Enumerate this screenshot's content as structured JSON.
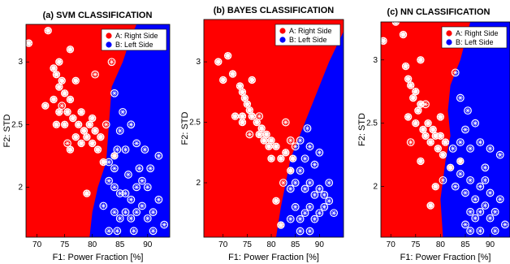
{
  "chart_data": [
    {
      "type": "scatter",
      "title": "(a) SVM CLASSIFICATION",
      "xlabel": "F1: Power Fraction [%]",
      "ylabel": "F2: STD",
      "xlim": [
        68,
        94
      ],
      "ylim": [
        1.6,
        3.3
      ],
      "xticks": [
        "70",
        "75",
        "80",
        "85",
        "90"
      ],
      "yticks": [
        "2",
        "2.5",
        "3"
      ],
      "legend": [
        "A: Right Side",
        "B: Left Side"
      ],
      "legend_position": "top-right",
      "boundary": [
        [
          79.5,
          1.6
        ],
        [
          80.0,
          1.8
        ],
        [
          81.0,
          2.0
        ],
        [
          82.5,
          2.2
        ],
        [
          83.0,
          2.5
        ],
        [
          83.5,
          2.8
        ],
        [
          85.5,
          3.0
        ],
        [
          87.0,
          3.2
        ],
        [
          88.0,
          3.3
        ]
      ],
      "series": [
        {
          "name": "A: Right Side",
          "points": [
            [
              68.5,
              3.15
            ],
            [
              72,
              3.25
            ],
            [
              73,
              2.95
            ],
            [
              73.5,
              2.9
            ],
            [
              74,
              2.8
            ],
            [
              74.5,
              2.85
            ],
            [
              73,
              2.7
            ],
            [
              75,
              2.75
            ],
            [
              75.5,
              2.6
            ],
            [
              76,
              2.7
            ],
            [
              74,
              2.6
            ],
            [
              73.5,
              2.5
            ],
            [
              75,
              2.5
            ],
            [
              76.5,
              2.55
            ],
            [
              77,
              2.4
            ],
            [
              77.5,
              2.5
            ],
            [
              78,
              2.6
            ],
            [
              78.5,
              2.45
            ],
            [
              79,
              2.4
            ],
            [
              79.5,
              2.5
            ],
            [
              80,
              2.35
            ],
            [
              80.5,
              2.45
            ],
            [
              81,
              2.3
            ],
            [
              81.5,
              2.4
            ],
            [
              76,
              2.3
            ],
            [
              74,
              3.0
            ],
            [
              77,
              2.85
            ],
            [
              79,
              1.95
            ],
            [
              82,
              2.2
            ],
            [
              84,
              2.25
            ],
            [
              80,
              2.55
            ],
            [
              78,
              2.35
            ],
            [
              76,
              3.1
            ],
            [
              71.5,
              2.65
            ]
          ]
        },
        {
          "name": "B: Left Side",
          "points": [
            [
              74.5,
              2.65
            ],
            [
              75.5,
              2.35
            ],
            [
              83,
              2.2
            ],
            [
              84.5,
              2.3
            ],
            [
              85,
              2.45
            ],
            [
              86,
              2.3
            ],
            [
              87,
              2.5
            ],
            [
              84,
              2.15
            ],
            [
              83,
              2.05
            ],
            [
              84,
              2.0
            ],
            [
              85,
              1.95
            ],
            [
              86,
              1.95
            ],
            [
              87,
              1.9
            ],
            [
              88,
              2.0
            ],
            [
              89,
              2.05
            ],
            [
              90,
              2.0
            ],
            [
              86,
              1.8
            ],
            [
              87,
              1.75
            ],
            [
              88,
              1.8
            ],
            [
              89,
              1.85
            ],
            [
              90,
              1.75
            ],
            [
              91,
              1.8
            ],
            [
              92,
              1.9
            ],
            [
              85,
              1.75
            ],
            [
              84,
              1.8
            ],
            [
              82,
              1.85
            ],
            [
              83,
              1.65
            ],
            [
              84.5,
              1.65
            ],
            [
              87.5,
              1.65
            ],
            [
              91,
              1.65
            ],
            [
              93,
              1.7
            ],
            [
              92,
              2.25
            ],
            [
              88,
              2.35
            ],
            [
              89.5,
              2.3
            ],
            [
              86.5,
              2.1
            ],
            [
              88.5,
              2.15
            ],
            [
              90.5,
              2.15
            ],
            [
              85.5,
              2.6
            ],
            [
              84,
              2.75
            ],
            [
              83.5,
              3.0
            ],
            [
              80.5,
              2.9
            ],
            [
              82.5,
              2.5
            ]
          ]
        }
      ]
    },
    {
      "type": "scatter",
      "title": "(b) BAYES CLASSIFICATION",
      "xlabel": "F1: Power Fraction [%]",
      "ylabel": "F2: STD",
      "xlim": [
        66,
        95
      ],
      "ylim": [
        1.55,
        3.35
      ],
      "xticks": [
        "70",
        "75",
        "80",
        "85",
        "90"
      ],
      "yticks": [
        "2",
        "2.5",
        "3"
      ],
      "legend": [
        "A: Right Side",
        "B: Left Side"
      ],
      "legend_position": "top-right",
      "boundary": [
        [
          81,
          1.55
        ],
        [
          82,
          1.8
        ],
        [
          83,
          2.0
        ],
        [
          84,
          2.2
        ],
        [
          86,
          2.4
        ],
        [
          88,
          2.6
        ],
        [
          90,
          2.8
        ],
        [
          92,
          3.0
        ],
        [
          95,
          3.25
        ]
      ],
      "series": [
        {
          "name": "A: Right Side",
          "points": [
            [
              69,
              3.0
            ],
            [
              70,
              2.85
            ],
            [
              71,
              3.05
            ],
            [
              72,
              2.9
            ],
            [
              73.5,
              2.8
            ],
            [
              74,
              2.75
            ],
            [
              74.5,
              2.7
            ],
            [
              75,
              2.65
            ],
            [
              75.5,
              2.6
            ],
            [
              76,
              2.55
            ],
            [
              74,
              2.5
            ],
            [
              74,
              2.55
            ],
            [
              77,
              2.5
            ],
            [
              77.5,
              2.4
            ],
            [
              78,
              2.45
            ],
            [
              78.5,
              2.35
            ],
            [
              79,
              2.4
            ],
            [
              79.5,
              2.3
            ],
            [
              80,
              2.35
            ],
            [
              81,
              2.3
            ],
            [
              82,
              2.2
            ],
            [
              83,
              2.25
            ],
            [
              84,
              2.1
            ],
            [
              84.5,
              2.2
            ],
            [
              81,
              1.85
            ],
            [
              82,
              1.65
            ],
            [
              80,
              2.2
            ],
            [
              76,
              2.85
            ],
            [
              72.5,
              2.55
            ]
          ]
        },
        {
          "name": "B: Left Side",
          "points": [
            [
              75.5,
              2.4
            ],
            [
              77.5,
              2.55
            ],
            [
              83,
              2.5
            ],
            [
              84,
              2.35
            ],
            [
              85,
              2.3
            ],
            [
              86,
              2.35
            ],
            [
              87,
              2.2
            ],
            [
              88,
              2.3
            ],
            [
              86,
              2.1
            ],
            [
              85,
              2.0
            ],
            [
              84,
              1.95
            ],
            [
              87,
              1.95
            ],
            [
              88,
              2.0
            ],
            [
              89,
              1.9
            ],
            [
              90,
              1.95
            ],
            [
              91,
              1.9
            ],
            [
              85,
              1.8
            ],
            [
              86,
              1.7
            ],
            [
              87,
              1.75
            ],
            [
              88,
              1.8
            ],
            [
              89,
              1.7
            ],
            [
              90,
              1.75
            ],
            [
              91,
              1.8
            ],
            [
              92,
              1.85
            ],
            [
              84,
              1.7
            ],
            [
              86,
              1.6
            ],
            [
              88,
              1.6
            ],
            [
              92,
              2.0
            ],
            [
              90,
              2.25
            ],
            [
              89,
              2.15
            ],
            [
              82.5,
              2.0
            ],
            [
              93,
              1.75
            ],
            [
              87.5,
              2.45
            ]
          ]
        }
      ]
    },
    {
      "type": "scatter",
      "title": "(c) NN CLASSIFICATION",
      "xlabel": "F1: Power Fraction [%]",
      "ylabel": "F2: STD",
      "xlim": [
        68,
        94
      ],
      "ylim": [
        1.6,
        3.3
      ],
      "xticks": [
        "70",
        "75",
        "80",
        "85",
        "90"
      ],
      "yticks": [
        "2",
        "2.5",
        "3"
      ],
      "legend": [
        "A: Right Side",
        "B: Left Side"
      ],
      "legend_position": "top-right",
      "boundary": [
        [
          80.5,
          1.6
        ],
        [
          80.0,
          1.9
        ],
        [
          81.0,
          2.2
        ],
        [
          82.0,
          2.4
        ],
        [
          81.5,
          2.6
        ],
        [
          82.0,
          2.8
        ],
        [
          84.0,
          3.0
        ],
        [
          85.0,
          3.15
        ],
        [
          86.0,
          3.3
        ]
      ],
      "series": [
        {
          "name": "A: Right Side",
          "points": [
            [
              68.5,
              3.15
            ],
            [
              71,
              3.3
            ],
            [
              72.5,
              3.2
            ],
            [
              73,
              2.95
            ],
            [
              73.5,
              2.85
            ],
            [
              74,
              2.8
            ],
            [
              74.5,
              2.7
            ],
            [
              75,
              2.75
            ],
            [
              75.5,
              2.6
            ],
            [
              76,
              2.65
            ],
            [
              73.5,
              2.55
            ],
            [
              75,
              2.5
            ],
            [
              76.5,
              2.45
            ],
            [
              77,
              2.4
            ],
            [
              77.5,
              2.5
            ],
            [
              78,
              2.35
            ],
            [
              78.5,
              2.45
            ],
            [
              79,
              2.4
            ],
            [
              79.5,
              2.3
            ],
            [
              80,
              2.4
            ],
            [
              80.5,
              2.25
            ],
            [
              81,
              2.35
            ],
            [
              76,
              2.2
            ],
            [
              79,
              2.0
            ],
            [
              78,
              1.85
            ],
            [
              82,
              2.15
            ],
            [
              84,
              2.2
            ],
            [
              80,
              2.55
            ],
            [
              76,
              3.0
            ]
          ]
        },
        {
          "name": "B: Left Side",
          "points": [
            [
              77,
              2.65
            ],
            [
              74,
              2.35
            ],
            [
              80.5,
              2.05
            ],
            [
              82.5,
              2.3
            ],
            [
              84,
              2.35
            ],
            [
              85,
              2.45
            ],
            [
              86,
              2.3
            ],
            [
              87,
              2.5
            ],
            [
              84,
              2.1
            ],
            [
              83,
              2.0
            ],
            [
              85,
              1.95
            ],
            [
              86,
              2.05
            ],
            [
              87,
              1.9
            ],
            [
              88,
              2.0
            ],
            [
              89,
              2.05
            ],
            [
              90,
              1.95
            ],
            [
              86,
              1.8
            ],
            [
              87,
              1.75
            ],
            [
              88,
              1.8
            ],
            [
              89,
              1.85
            ],
            [
              90,
              1.75
            ],
            [
              91,
              1.8
            ],
            [
              92,
              1.9
            ],
            [
              85,
              1.7
            ],
            [
              84,
              1.55
            ],
            [
              86,
              1.65
            ],
            [
              88,
              1.65
            ],
            [
              91,
              1.65
            ],
            [
              93,
              1.7
            ],
            [
              92,
              2.25
            ],
            [
              88,
              2.35
            ],
            [
              90,
              2.3
            ],
            [
              89,
              2.15
            ],
            [
              84,
              2.7
            ],
            [
              83,
              2.9
            ],
            [
              85.5,
              2.6
            ]
          ]
        }
      ]
    }
  ],
  "colors": {
    "class_a": "#ff0000",
    "class_b": "#0000ff",
    "marker_a_fill": "#ffffff",
    "marker_b_fill": "#0000ff"
  }
}
